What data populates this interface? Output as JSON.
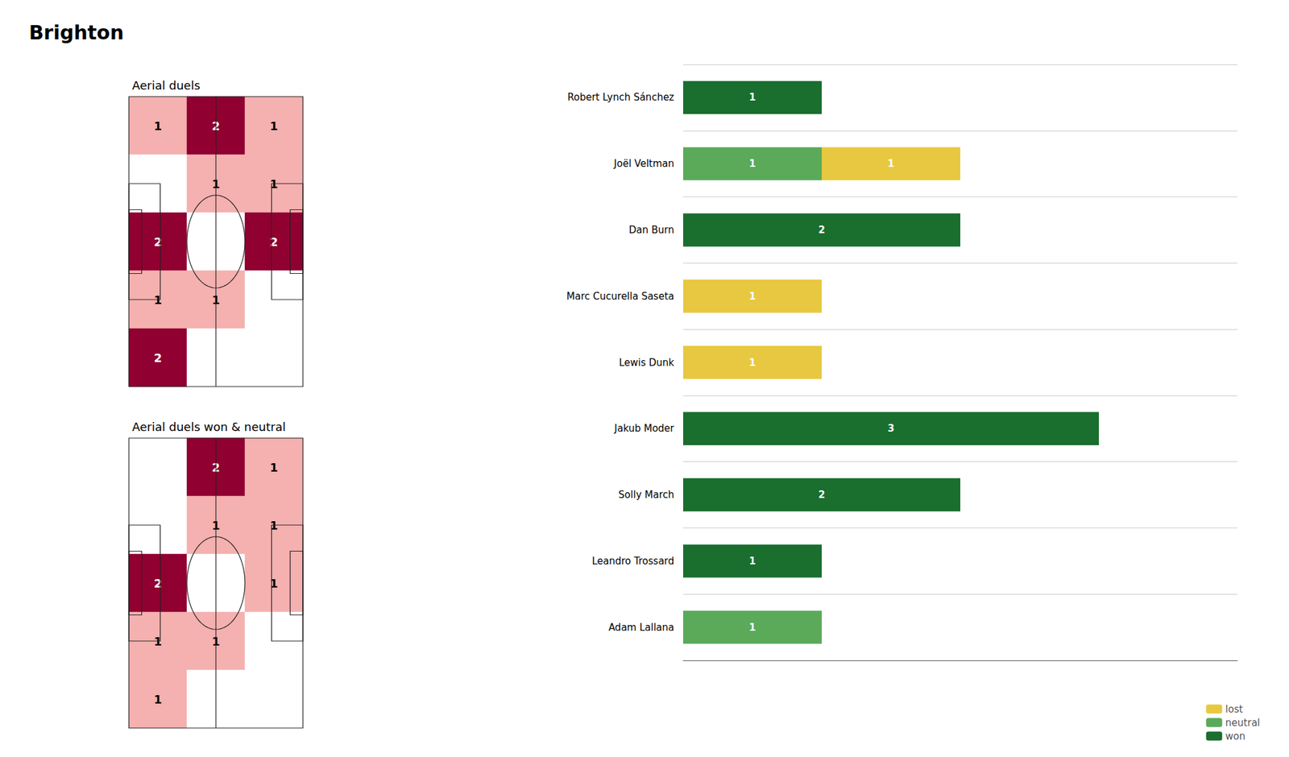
{
  "title": "Brighton",
  "chart_data": [
    {
      "type": "heatmap",
      "title": "Aerial duels",
      "cells": [
        [
          1,
          2,
          1
        ],
        [
          0,
          1,
          1
        ],
        [
          2,
          0,
          2
        ],
        [
          1,
          1,
          0
        ],
        [
          2,
          0,
          0
        ]
      ],
      "value_range": [
        0,
        2
      ],
      "colors": [
        "#ffffff",
        "#f5b0b0",
        "#900030"
      ],
      "data_labels": true,
      "tick_labels": false
    },
    {
      "type": "heatmap",
      "title": "Aerial duels won & neutral",
      "cells": [
        [
          0,
          2,
          1
        ],
        [
          0,
          1,
          1
        ],
        [
          2,
          0,
          1
        ],
        [
          1,
          1,
          0
        ],
        [
          1,
          0,
          0
        ]
      ],
      "value_range": [
        0,
        2
      ],
      "colors": [
        "#ffffff",
        "#f5b0b0",
        "#900030"
      ],
      "data_labels": true,
      "tick_labels": false
    },
    {
      "type": "bar",
      "orientation": "horizontal",
      "stacked": true,
      "categories": [
        "Robert Lynch Sánchez",
        "Joël Veltman",
        "Dan Burn",
        "Marc Cucurella Saseta",
        "Lewis Dunk",
        "Jakub Moder",
        "Solly March",
        "Leandro Trossard",
        "Adam Lallana"
      ],
      "series": [
        {
          "name": "won",
          "color": "#1a6e2e",
          "values": [
            1,
            0,
            2,
            0,
            0,
            3,
            2,
            1,
            0
          ]
        },
        {
          "name": "neutral",
          "color": "#5aaa5a",
          "values": [
            0,
            1,
            0,
            0,
            0,
            0,
            0,
            0,
            1
          ]
        },
        {
          "name": "lost",
          "color": "#e8c840",
          "values": [
            0,
            1,
            0,
            1,
            1,
            0,
            0,
            0,
            0
          ]
        }
      ],
      "xlim": [
        0,
        4
      ],
      "xticks": [],
      "grid": true,
      "legend": "lower right",
      "data_labels": true,
      "tick_labels": "y"
    }
  ]
}
